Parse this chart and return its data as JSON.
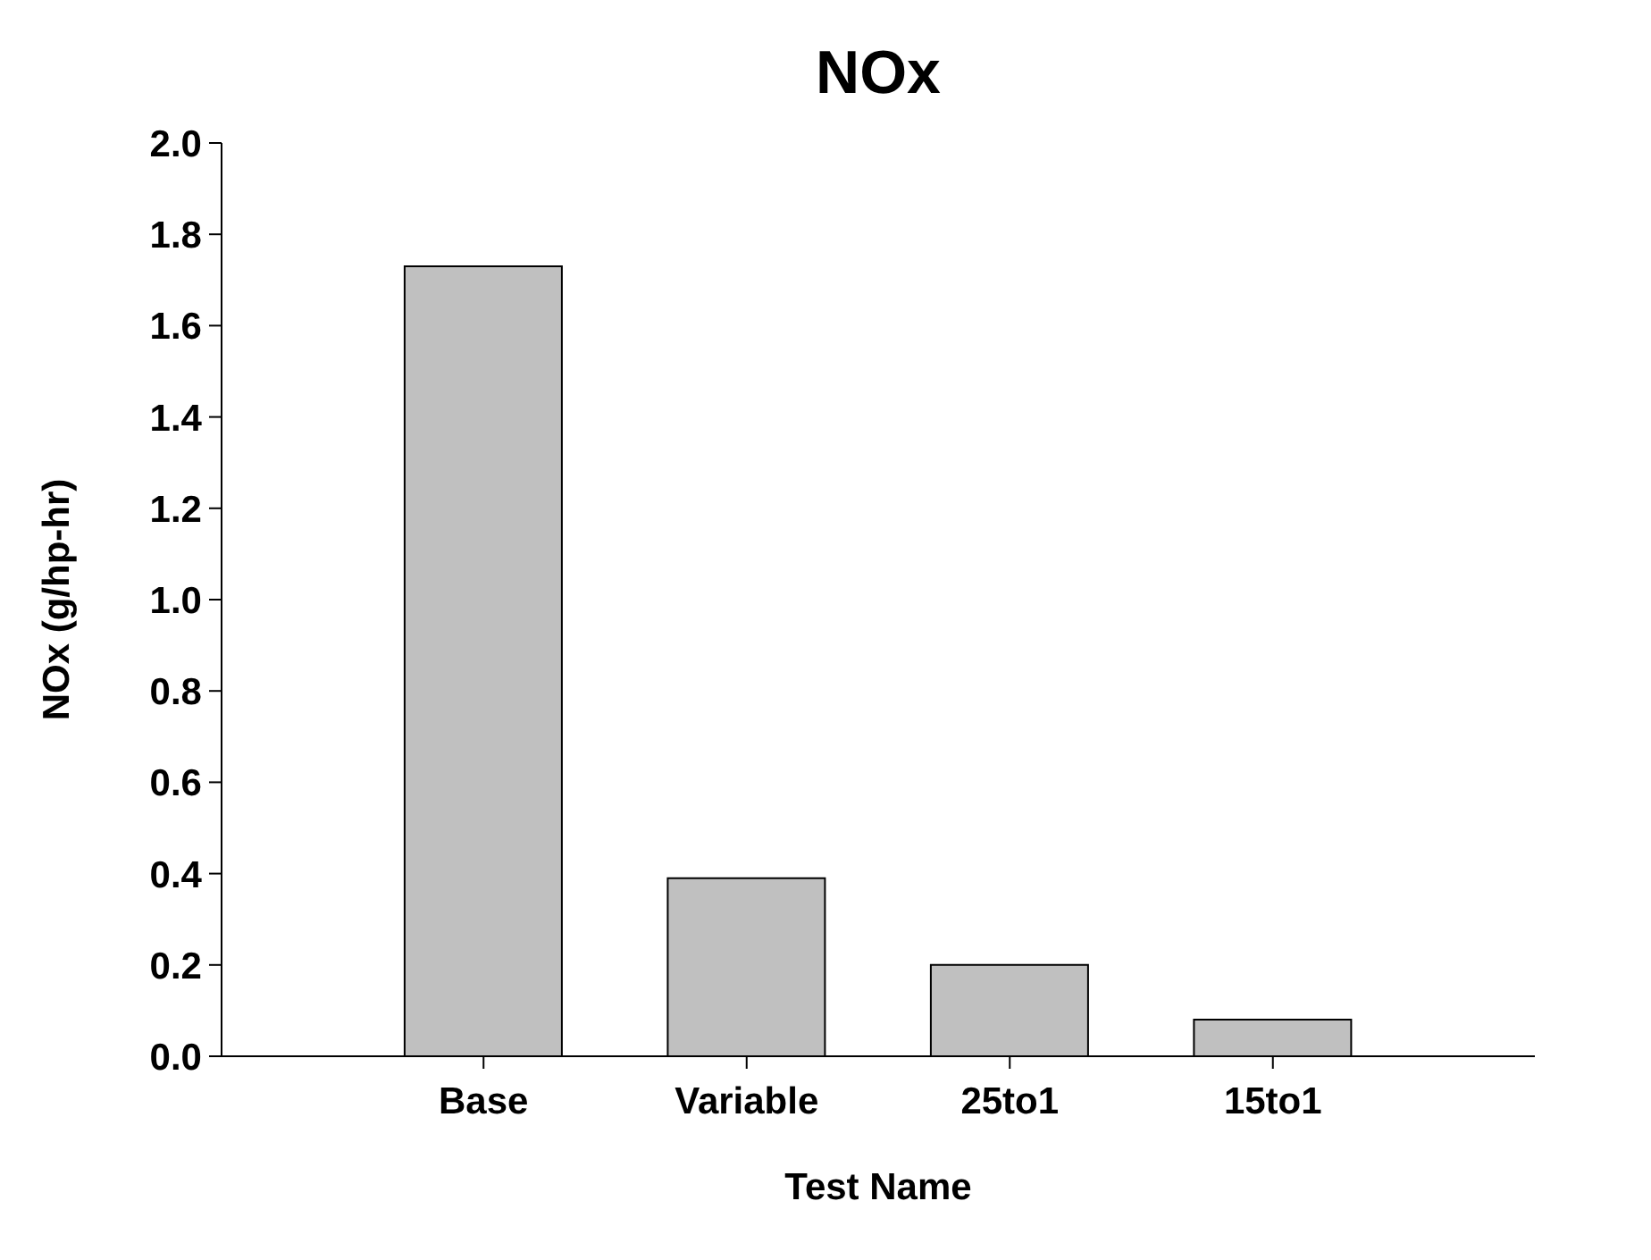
{
  "chart_data": {
    "type": "bar",
    "title": "NOx",
    "xlabel": "Test Name",
    "ylabel": "NOx (g/hp-hr)",
    "categories": [
      "Base",
      "Variable",
      "25to1",
      "15to1"
    ],
    "values": [
      1.73,
      0.39,
      0.2,
      0.08
    ],
    "color": "#c0c0c0",
    "ylim": [
      0,
      2.0
    ],
    "yticks": [
      {
        "value": 0,
        "label": "0.0"
      },
      {
        "value": 0.2,
        "label": "0.2"
      },
      {
        "value": 0.4,
        "label": "0.4"
      },
      {
        "value": 0.6,
        "label": "0.6"
      },
      {
        "value": 0.8,
        "label": "0.8"
      },
      {
        "value": 1.0,
        "label": "1.0"
      },
      {
        "value": 1.2,
        "label": "1.2"
      },
      {
        "value": 1.4,
        "label": "1.4"
      },
      {
        "value": 1.6,
        "label": "1.6"
      },
      {
        "value": 1.8,
        "label": "1.8"
      },
      {
        "value": 2.0,
        "label": "2.0"
      }
    ],
    "grid": false,
    "legend": false
  }
}
